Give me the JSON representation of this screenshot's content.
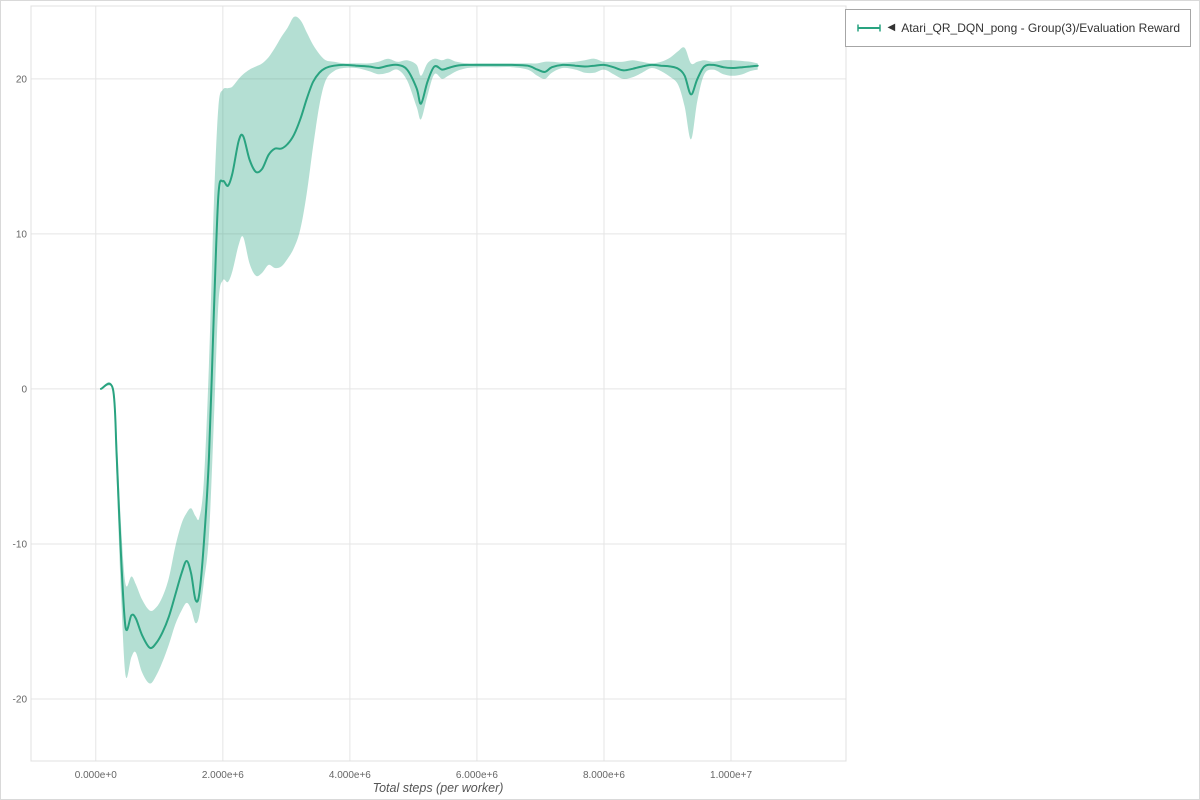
{
  "legend": {
    "collapse_icon": "◀",
    "items": [
      {
        "label": "Atari_QR_DQN_pong - Group(3)/Evaluation Reward",
        "color": "#29a380"
      }
    ]
  },
  "axes": {
    "x_label": "Total steps (per worker)",
    "x_ticks": [
      {
        "v": 0,
        "label": "0.000e+0"
      },
      {
        "v": 2000000,
        "label": "2.000e+6"
      },
      {
        "v": 4000000,
        "label": "4.000e+6"
      },
      {
        "v": 6000000,
        "label": "6.000e+6"
      },
      {
        "v": 8000000,
        "label": "8.000e+6"
      },
      {
        "v": 10000000,
        "label": "1.000e+7"
      }
    ],
    "y_ticks": [
      {
        "v": -20,
        "label": "-20"
      },
      {
        "v": -10,
        "label": "-10"
      },
      {
        "v": 0,
        "label": "0"
      },
      {
        "v": 10,
        "label": "10"
      },
      {
        "v": 20,
        "label": "20"
      }
    ]
  },
  "colors": {
    "accent": "#29a380",
    "band_fill": "rgba(41,163,128,0.35)",
    "grid": "#e5e5e5",
    "panel_border": "#e0e0e0",
    "tick_text": "#666666",
    "axis_label": "#555555"
  },
  "chart_data": {
    "type": "line",
    "title": "",
    "xlabel": "Total steps (per worker)",
    "ylabel": "",
    "xlim": [
      -1020000,
      11810000
    ],
    "ylim": [
      -24,
      24.7
    ],
    "grid": true,
    "legend_position": "top-right",
    "series": [
      {
        "name": "Atari_QR_DQN_pong - Group(3)/Evaluation Reward",
        "style": "mean line with min-max shaded band (group of 3 runs)",
        "x": [
          80000,
          270000,
          330000,
          400000,
          470000,
          560000,
          630000,
          730000,
          850000,
          950000,
          1050000,
          1150000,
          1250000,
          1350000,
          1430000,
          1500000,
          1570000,
          1630000,
          1700000,
          1780000,
          1860000,
          1930000,
          2000000,
          2080000,
          2150000,
          2250000,
          2320000,
          2420000,
          2520000,
          2620000,
          2720000,
          2820000,
          2920000,
          3020000,
          3120000,
          3220000,
          3320000,
          3420000,
          3520000,
          3620000,
          3750000,
          3900000,
          4100000,
          4300000,
          4450000,
          4600000,
          4750000,
          4900000,
          5050000,
          5120000,
          5220000,
          5330000,
          5450000,
          5550000,
          5680000,
          5850000,
          6050000,
          6300000,
          6550000,
          6800000,
          6950000,
          7070000,
          7180000,
          7350000,
          7550000,
          7700000,
          7850000,
          8000000,
          8150000,
          8300000,
          8450000,
          8600000,
          8750000,
          8900000,
          9050000,
          9170000,
          9270000,
          9370000,
          9470000,
          9580000,
          9720000,
          9880000,
          10020000,
          10180000,
          10300000,
          10420000
        ],
        "mean": [
          0,
          0,
          -4.5,
          -11,
          -15.4,
          -14.6,
          -14.8,
          -15.9,
          -16.7,
          -16.4,
          -15.7,
          -14.7,
          -13.3,
          -11.9,
          -11.1,
          -11.9,
          -13.6,
          -13.2,
          -10,
          -4.5,
          5,
          12.5,
          13.4,
          13.1,
          13.9,
          16,
          16.3,
          14.8,
          14,
          14.2,
          15.1,
          15.5,
          15.5,
          15.8,
          16.4,
          17.4,
          18.7,
          19.8,
          20.4,
          20.7,
          20.85,
          20.9,
          20.85,
          20.8,
          20.7,
          20.85,
          20.9,
          20.6,
          19.4,
          18.4,
          19.8,
          20.8,
          20.6,
          20.7,
          20.85,
          20.9,
          20.9,
          20.9,
          20.9,
          20.85,
          20.6,
          20.45,
          20.75,
          20.9,
          20.85,
          20.8,
          20.85,
          20.9,
          20.75,
          20.55,
          20.65,
          20.8,
          20.9,
          20.85,
          20.8,
          20.65,
          20.2,
          19.0,
          20.0,
          20.8,
          20.9,
          20.75,
          20.7,
          20.75,
          20.8,
          20.85
        ],
        "lower": [
          0,
          0,
          -6,
          -13.5,
          -18.5,
          -17.3,
          -17,
          -18.3,
          -19,
          -18.5,
          -17.6,
          -16.5,
          -15.2,
          -14.3,
          -13.8,
          -14.2,
          -15.1,
          -14.6,
          -12.5,
          -9.5,
          -2,
          5.5,
          7,
          6.9,
          7.6,
          9.3,
          9.8,
          8.1,
          7.3,
          7.5,
          8,
          7.8,
          7.9,
          8.4,
          9.1,
          10.3,
          12.6,
          15.6,
          18.3,
          19.9,
          20.5,
          20.7,
          20.7,
          20.5,
          20.3,
          20.4,
          20.6,
          19.9,
          18.2,
          17.4,
          18.9,
          20.3,
          20,
          20.2,
          20.5,
          20.7,
          20.75,
          20.75,
          20.75,
          20.6,
          20.2,
          20,
          20.4,
          20.7,
          20.6,
          20.4,
          20.4,
          20.6,
          20.3,
          20,
          20.1,
          20.4,
          20.7,
          20.5,
          20.1,
          19.6,
          18.2,
          16.1,
          18.6,
          20.3,
          20.6,
          20.3,
          20.2,
          20.3,
          20.5,
          20.6
        ],
        "upper": [
          0,
          0,
          -3,
          -9,
          -12.6,
          -12.1,
          -12.6,
          -13.6,
          -14.3,
          -14.1,
          -13.4,
          -12.2,
          -10.2,
          -8.7,
          -8,
          -7.7,
          -8.2,
          -8.3,
          -6,
          1.5,
          12,
          18.2,
          19.3,
          19.4,
          19.5,
          20,
          20.3,
          20.6,
          20.8,
          21,
          21.4,
          22,
          22.7,
          23.3,
          24,
          23.8,
          23,
          22.2,
          21.6,
          21.2,
          21.1,
          21,
          21,
          21,
          21.1,
          21.3,
          21.1,
          21.2,
          20.9,
          20.2,
          21,
          21.3,
          21.2,
          21.3,
          21.1,
          21,
          21,
          21,
          21,
          21,
          21,
          21.1,
          21.1,
          21.05,
          21.1,
          21.2,
          21.3,
          21.1,
          21.1,
          21.1,
          21.2,
          21.1,
          21,
          21.1,
          21.4,
          21.8,
          22,
          21,
          21.1,
          21.2,
          21.1,
          21.2,
          21.2,
          21.15,
          21.1,
          21
        ]
      }
    ]
  }
}
